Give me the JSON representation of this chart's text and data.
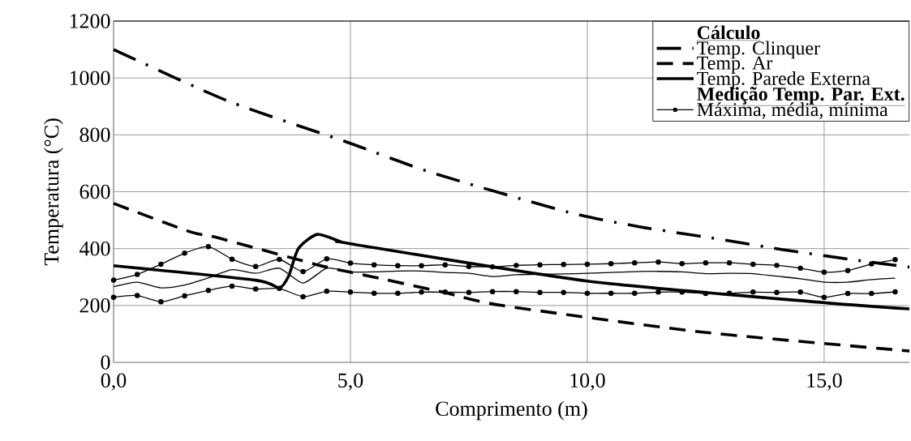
{
  "chart_data": {
    "type": "line",
    "xlabel": "Comprimento (m)",
    "ylabel": "Temperatura (°C)",
    "legend_title": "Cálculo",
    "annotations": [
      "Medição Temp. Par. Ext."
    ],
    "xlim": [
      0,
      16.8
    ],
    "ylim": [
      0,
      1200
    ],
    "xticks": [
      {
        "value": 0,
        "label": "0,0"
      },
      {
        "value": 5,
        "label": "5,0"
      },
      {
        "value": 10,
        "label": "10,0"
      },
      {
        "value": 15,
        "label": "15,0"
      }
    ],
    "yticks": [
      0,
      200,
      400,
      600,
      800,
      1000,
      1200
    ],
    "grid": true,
    "legend": "top right",
    "series": [
      {
        "name": "Temp. Clinquer",
        "color": "#000000",
        "line_style": "dashdot",
        "x": [
          0,
          2.4,
          4.9,
          6.7,
          9.6,
          11.1,
          12.6,
          14.1,
          15.6,
          16.8
        ],
        "values": [
          1100,
          920,
          776,
          668,
          528,
          477,
          438,
          397,
          361,
          335
        ]
      },
      {
        "name": "Temp. Ar",
        "color": "#000000",
        "line_style": "dashed",
        "x": [
          0,
          1.6,
          2.2,
          4.3,
          5.0,
          5.6,
          7.0,
          8.2,
          12.4,
          16.8
        ],
        "values": [
          559,
          460,
          438,
          343,
          317,
          296,
          245,
          200,
          107,
          40
        ]
      },
      {
        "name": "Temp. Parede Externa",
        "color": "#000000",
        "line_style": "solid",
        "x": [
          0,
          3.0,
          3.5,
          3.7,
          3.9,
          4.3,
          4.8,
          5.0,
          10,
          15,
          16.8
        ],
        "values": [
          340,
          289,
          262,
          305,
          400,
          450,
          424,
          417,
          286,
          210,
          188
        ]
      },
      {
        "name": "Máxima, média, mínima",
        "color": "#000000",
        "line_style": "solid",
        "marker": "circle",
        "x": [
          0,
          0.5,
          1,
          1.5,
          2,
          2.5,
          3,
          3.5,
          4,
          4.5,
          5,
          5.5,
          6,
          6.5,
          7,
          7.5,
          8,
          8.5,
          9,
          9.5,
          10,
          10.5,
          11,
          11.5,
          12,
          12.5,
          13,
          13.5,
          14,
          14.5,
          15,
          15.5,
          16,
          16.5
        ],
        "values": [
          289,
          309,
          345,
          384,
          407,
          363,
          337,
          362,
          319,
          364,
          349,
          343,
          340,
          340,
          343,
          337,
          336,
          341,
          343,
          344,
          345,
          347,
          350,
          353,
          347,
          350,
          350,
          345,
          341,
          331,
          317,
          323,
          346,
          361
        ]
      },
      {
        "color": "#000000",
        "line_style": "solid",
        "marker": "none",
        "x": [
          0,
          0.5,
          1,
          1.5,
          2,
          2.5,
          3,
          3.5,
          4,
          4.5,
          5,
          5.5,
          6,
          6.5,
          7,
          7.5,
          8,
          8.5,
          9,
          9.5,
          10,
          10.5,
          11,
          11.5,
          12,
          12.5,
          13,
          13.5,
          14,
          14.5,
          15,
          15.5,
          16,
          16.5
        ],
        "values": [
          266,
          282,
          262,
          272,
          297,
          326,
          313,
          331,
          279,
          331,
          318,
          318,
          321,
          321,
          316,
          313,
          302,
          308,
          310,
          311,
          313,
          316,
          319,
          320,
          318,
          312,
          313,
          312,
          303,
          294,
          282,
          282,
          291,
          296
        ]
      },
      {
        "color": "#000000",
        "line_style": "solid",
        "marker": "circle",
        "x": [
          0,
          0.5,
          1,
          1.5,
          2,
          2.5,
          3,
          3.5,
          4,
          4.5,
          5,
          5.5,
          6,
          6.5,
          7,
          7.5,
          8,
          8.5,
          9,
          9.5,
          10,
          10.5,
          11,
          11.5,
          12,
          12.5,
          13,
          13.5,
          14,
          14.5,
          15,
          15.5,
          16,
          16.5
        ],
        "values": [
          229,
          235,
          213,
          234,
          253,
          268,
          258,
          260,
          231,
          250,
          247,
          243,
          243,
          247,
          247,
          246,
          249,
          249,
          246,
          246,
          243,
          243,
          243,
          247,
          247,
          242,
          243,
          247,
          246,
          247,
          229,
          242,
          242,
          248
        ]
      }
    ]
  }
}
